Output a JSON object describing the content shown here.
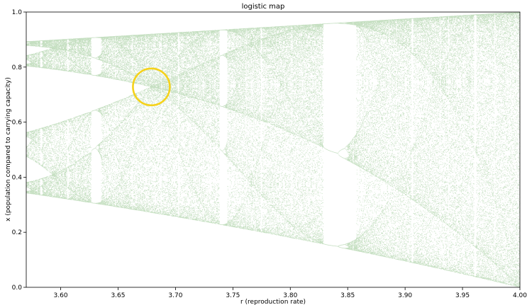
{
  "chart_data": {
    "type": "scatter",
    "title": "logistic map",
    "xlabel": "r (reproduction rate)",
    "ylabel": "x (population compared to carrying capacity)",
    "xlim": [
      3.57,
      4.0
    ],
    "ylim": [
      0.0,
      1.0
    ],
    "x_ticks": [
      "3.60",
      "3.65",
      "3.70",
      "3.75",
      "3.80",
      "3.85",
      "3.90",
      "3.95",
      "4.00"
    ],
    "y_ticks": [
      "0.0",
      "0.2",
      "0.4",
      "0.6",
      "0.8",
      "1.0"
    ],
    "grid": false,
    "legend": "none",
    "point_color": "#2e8b22",
    "series": [
      {
        "values_description": "bifurcation diagram of x_{n+1} = r x_n (1 - x_n), long-run iterates plotted for r from 3.57 to 4.0",
        "r_range": [
          3.57,
          4.0
        ],
        "x_range": [
          0.0,
          1.0
        ]
      }
    ],
    "annotations": [
      {
        "type": "circle",
        "x": 3.679,
        "y": 0.728,
        "color": "#f5d21b"
      }
    ]
  }
}
